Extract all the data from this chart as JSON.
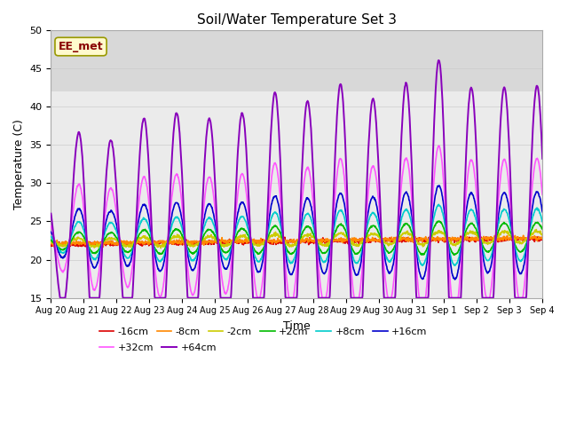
{
  "title": "Soil/Water Temperature Set 3",
  "xlabel": "Time",
  "ylabel": "Temperature (C)",
  "ylim": [
    15,
    50
  ],
  "yticks": [
    15,
    20,
    25,
    30,
    35,
    40,
    45,
    50
  ],
  "watermark_text": "EE_met",
  "series_order": [
    "-16cm",
    "-8cm",
    "-2cm",
    "+2cm",
    "+8cm",
    "+16cm",
    "+32cm",
    "+64cm"
  ],
  "series_colors": {
    "-16cm": "#dd0000",
    "-8cm": "#ff8800",
    "-2cm": "#cccc00",
    "+2cm": "#00bb00",
    "+8cm": "#00cccc",
    "+16cm": "#0000cc",
    "+32cm": "#ff55ff",
    "+64cm": "#8800bb"
  },
  "n_days": 15,
  "x_tick_labels": [
    "Aug 20",
    "Aug 21",
    "Aug 22",
    "Aug 23",
    "Aug 24",
    "Aug 25",
    "Aug 26",
    "Aug 27",
    "Aug 28",
    "Aug 29",
    "Aug 30",
    "Aug 31",
    "Sep 1",
    "Sep 2",
    "Sep 3",
    "Sep 4"
  ],
  "background_color": "#ffffff",
  "ax_background": "#ebebeb",
  "shaded_band_low": 42.0,
  "shaded_band_high": 50.0,
  "shaded_band_color": "#d8d8d8",
  "grid_color": "#cccccc",
  "lw_thin": 1.0,
  "lw_thick": 1.5,
  "legend_ncol_row1": 6,
  "watermark_facecolor": "#fffacd",
  "watermark_edgecolor": "#999900",
  "watermark_textcolor": "#880000"
}
